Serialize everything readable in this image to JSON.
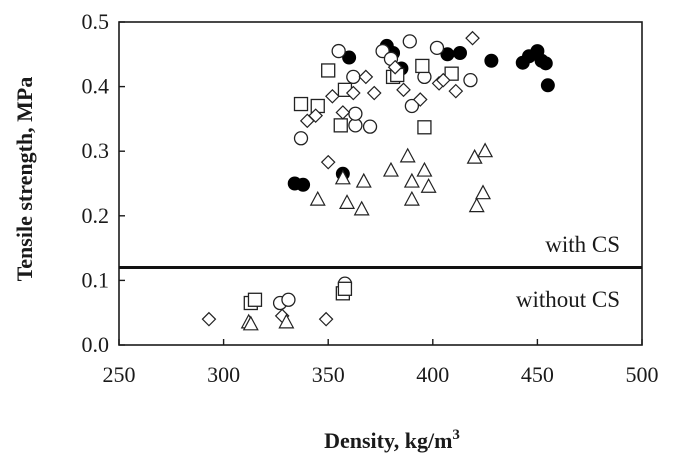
{
  "chart_data": {
    "type": "scatter",
    "title": "",
    "xlabel": "Density, kg/m",
    "xlabel_superscript": "3",
    "ylabel": "Tensile strength, MPa",
    "xlim": [
      250,
      500
    ],
    "ylim": [
      0.0,
      0.5
    ],
    "x_ticks": [
      "250",
      "300",
      "350",
      "400",
      "450",
      "500"
    ],
    "y_ticks": [
      "0.0",
      "0.1",
      "0.2",
      "0.3",
      "0.4",
      "0.5"
    ],
    "divider_y": 0.12,
    "annotations": [
      "with CS",
      "without CS"
    ],
    "series": [
      {
        "name": "filled circles",
        "marker": "filled-circle",
        "points": [
          [
            334,
            0.25
          ],
          [
            338,
            0.248
          ],
          [
            357,
            0.265
          ],
          [
            360,
            0.445
          ],
          [
            378,
            0.463
          ],
          [
            381,
            0.452
          ],
          [
            385,
            0.428
          ],
          [
            407,
            0.45
          ],
          [
            413,
            0.452
          ],
          [
            428,
            0.44
          ],
          [
            443,
            0.437
          ],
          [
            446,
            0.447
          ],
          [
            450,
            0.455
          ],
          [
            452,
            0.44
          ],
          [
            454,
            0.436
          ],
          [
            455,
            0.402
          ]
        ]
      },
      {
        "name": "open circles",
        "marker": "open-circle",
        "points": [
          [
            337,
            0.32
          ],
          [
            355,
            0.455
          ],
          [
            362,
            0.415
          ],
          [
            363,
            0.34
          ],
          [
            363,
            0.358
          ],
          [
            370,
            0.338
          ],
          [
            376,
            0.455
          ],
          [
            380,
            0.443
          ],
          [
            389,
            0.47
          ],
          [
            390,
            0.37
          ],
          [
            396,
            0.415
          ],
          [
            402,
            0.46
          ],
          [
            418,
            0.41
          ],
          [
            327,
            0.065
          ],
          [
            331,
            0.07
          ],
          [
            358,
            0.095
          ]
        ]
      },
      {
        "name": "open squares",
        "marker": "open-square",
        "points": [
          [
            337,
            0.373
          ],
          [
            345,
            0.37
          ],
          [
            350,
            0.425
          ],
          [
            356,
            0.34
          ],
          [
            358,
            0.395
          ],
          [
            381,
            0.415
          ],
          [
            383,
            0.418
          ],
          [
            395,
            0.432
          ],
          [
            396,
            0.337
          ],
          [
            409,
            0.42
          ],
          [
            313,
            0.065
          ],
          [
            315,
            0.07
          ],
          [
            357,
            0.08
          ],
          [
            358,
            0.087
          ]
        ]
      },
      {
        "name": "open diamonds",
        "marker": "open-diamond",
        "points": [
          [
            340,
            0.347
          ],
          [
            344,
            0.355
          ],
          [
            350,
            0.283
          ],
          [
            352,
            0.385
          ],
          [
            357,
            0.36
          ],
          [
            362,
            0.39
          ],
          [
            368,
            0.415
          ],
          [
            372,
            0.39
          ],
          [
            382,
            0.43
          ],
          [
            386,
            0.395
          ],
          [
            394,
            0.38
          ],
          [
            403,
            0.405
          ],
          [
            411,
            0.393
          ],
          [
            419,
            0.475
          ],
          [
            405,
            0.41
          ],
          [
            293,
            0.04
          ],
          [
            328,
            0.045
          ],
          [
            349,
            0.04
          ]
        ]
      },
      {
        "name": "open triangles",
        "marker": "open-triangle",
        "points": [
          [
            345,
            0.225
          ],
          [
            357,
            0.258
          ],
          [
            359,
            0.22
          ],
          [
            366,
            0.21
          ],
          [
            367,
            0.253
          ],
          [
            380,
            0.27
          ],
          [
            388,
            0.292
          ],
          [
            390,
            0.225
          ],
          [
            390,
            0.253
          ],
          [
            396,
            0.27
          ],
          [
            398,
            0.245
          ],
          [
            420,
            0.29
          ],
          [
            421,
            0.215
          ],
          [
            424,
            0.235
          ],
          [
            425,
            0.3
          ],
          [
            312,
            0.035
          ],
          [
            313,
            0.032
          ],
          [
            330,
            0.035
          ]
        ]
      }
    ]
  }
}
